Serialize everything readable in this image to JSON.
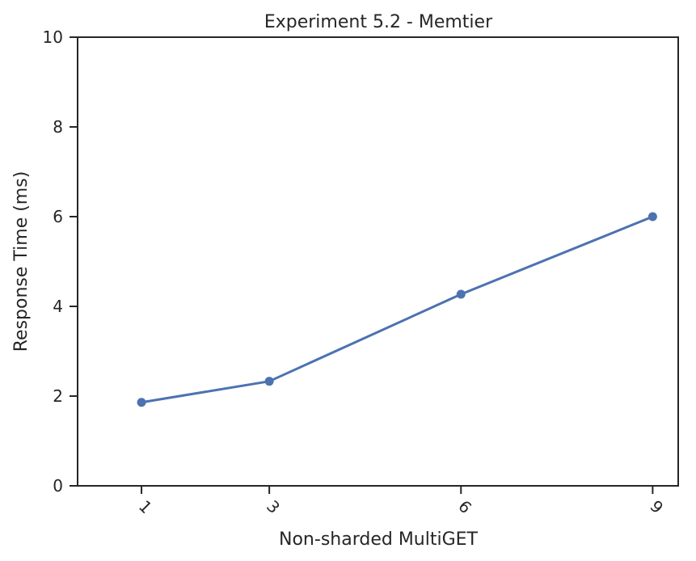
{
  "chart_data": {
    "type": "line",
    "title": "Experiment 5.2 - Memtier",
    "xlabel": "Non-sharded MultiGET",
    "ylabel": "Response Time (ms)",
    "x": [
      1,
      3,
      6,
      9
    ],
    "x_tick_labels": [
      "1",
      "3",
      "6",
      "9"
    ],
    "y_ticks": [
      0,
      2,
      4,
      6,
      8,
      10
    ],
    "xlim": [
      0,
      9.4
    ],
    "ylim": [
      0,
      10
    ],
    "grid": false,
    "series": [
      {
        "values": [
          1.86,
          2.33,
          4.27,
          6.0
        ],
        "color": "#4c72b0",
        "marker": "circle"
      }
    ]
  }
}
